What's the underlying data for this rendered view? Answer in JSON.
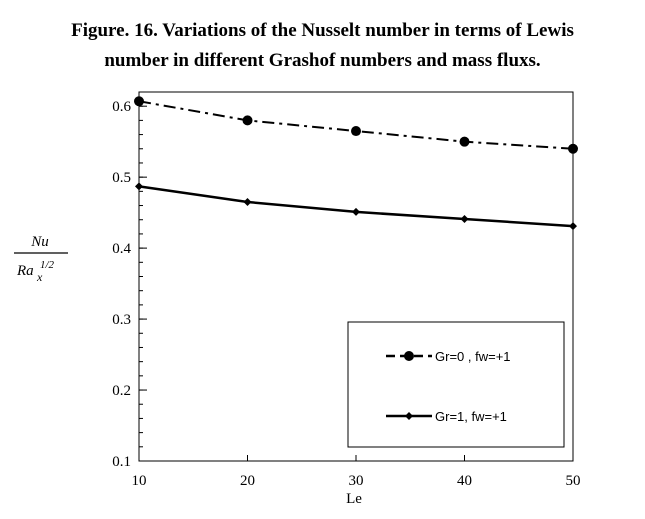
{
  "figure": {
    "caption_line1": "Figure. 16. Variations of the Nusselt number in terms of Lewis",
    "caption_line2": "number in different Grashof numbers and mass fluxs."
  },
  "chart_data": {
    "type": "line",
    "xlabel": "Le",
    "ylabel": {
      "numerator": "Nu",
      "denominator_base": "Ra",
      "denominator_sub": "x",
      "denominator_sup": "1/2"
    },
    "x": [
      10,
      20,
      30,
      40,
      50
    ],
    "xlim": [
      10,
      50
    ],
    "ylim": [
      0.1,
      0.62
    ],
    "x_ticks": [
      "10",
      "20",
      "30",
      "40",
      "50"
    ],
    "y_ticks": [
      0.1,
      0.2,
      0.3,
      0.4,
      0.5,
      0.6
    ],
    "y_tick_labels": [
      "0.1",
      "0.2",
      "0.3",
      "0.4",
      "0.5",
      "0.6"
    ],
    "grid": false,
    "legend_position": "bottom-right",
    "series": [
      {
        "name": "Gr=0 , fw=+1",
        "values": [
          0.607,
          0.58,
          0.565,
          0.55,
          0.54
        ],
        "line_style": "dash-dot",
        "marker": "circle",
        "color": "#000000"
      },
      {
        "name": "Gr=1, fw=+1",
        "values": [
          0.487,
          0.465,
          0.451,
          0.441,
          0.431
        ],
        "line_style": "solid",
        "marker": "diamond",
        "color": "#000000"
      }
    ]
  }
}
